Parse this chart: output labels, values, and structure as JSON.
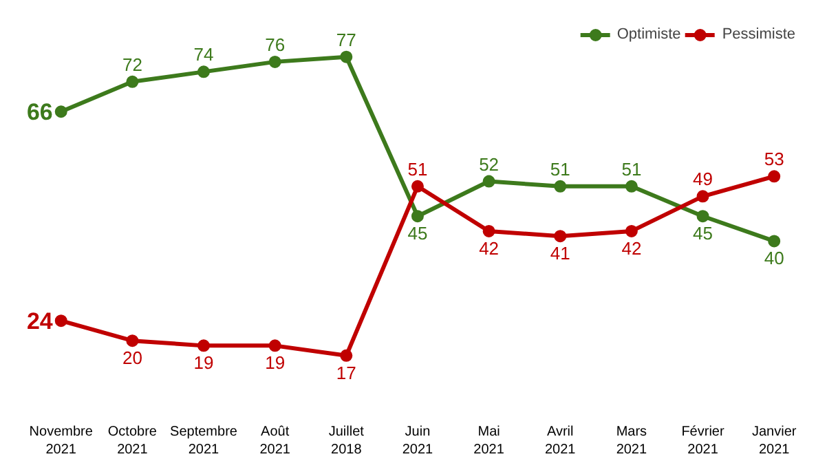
{
  "chart_data": {
    "type": "line",
    "categories": [
      "Novembre\n2021",
      "Octobre\n2021",
      "Septembre\n2021",
      "Août\n2021",
      "Juillet\n2018",
      "Juin\n2021",
      "Mai\n2021",
      "Avril\n2021",
      "Mars\n2021",
      "Février\n2021",
      "Janvier\n2021"
    ],
    "series": [
      {
        "name": "Optimiste",
        "color": "#3d7a1c",
        "values": [
          66,
          72,
          74,
          76,
          77,
          45,
          52,
          51,
          51,
          45,
          40
        ]
      },
      {
        "name": "Pessimiste",
        "color": "#c00000",
        "values": [
          24,
          20,
          19,
          19,
          17,
          51,
          42,
          41,
          42,
          49,
          53
        ]
      }
    ],
    "data_labels": true,
    "legend": "top right",
    "marker": "circle",
    "line_style": "solid",
    "grid": false
  }
}
